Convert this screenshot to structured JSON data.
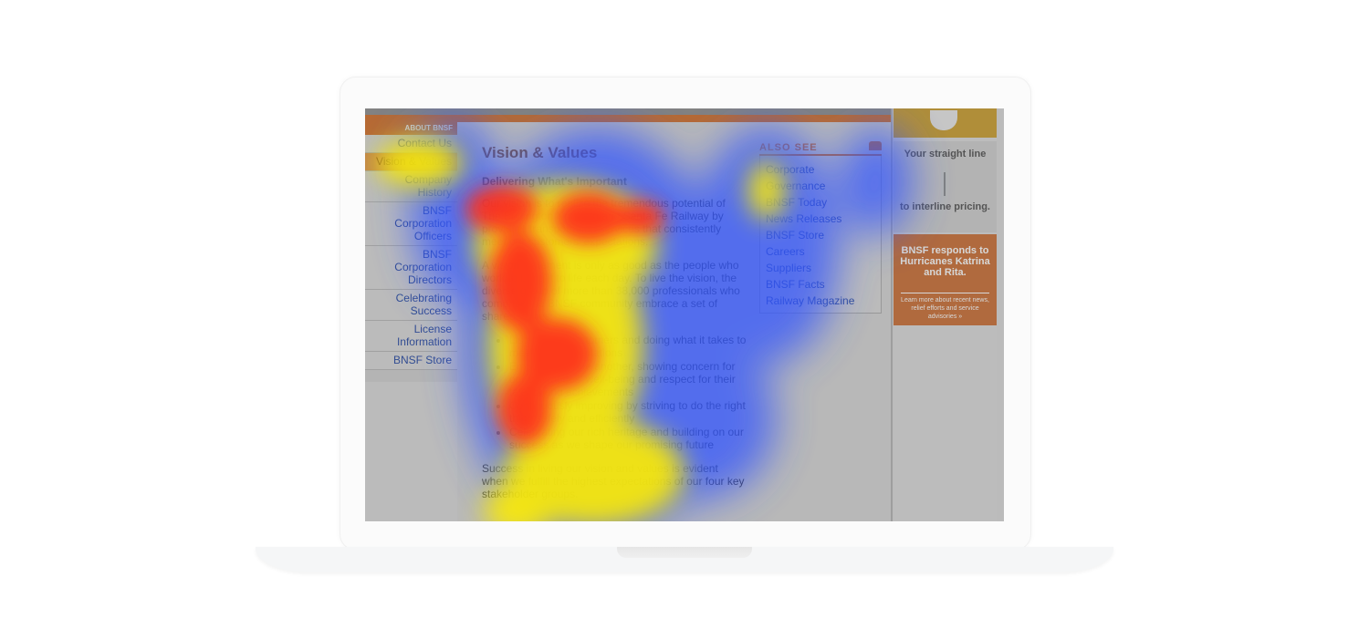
{
  "leftnav": {
    "header": "ABOUT BNSF",
    "items": [
      {
        "label": "Contact Us",
        "active": false
      },
      {
        "label": "Vision & Values",
        "active": true
      },
      {
        "label": "Company History",
        "active": false
      },
      {
        "label": "BNSF Corporation Officers",
        "active": false
      },
      {
        "label": "BNSF Corporation Directors",
        "active": false
      },
      {
        "label": "Celebrating Success",
        "active": false
      },
      {
        "label": "License Information",
        "active": false
      },
      {
        "label": "BNSF Store",
        "active": false
      }
    ]
  },
  "main": {
    "title": "Vision & Values",
    "subtitle": "Delivering What's Important",
    "para1": "Our vision is to realize the tremendous potential of The Burlington Northern and Santa Fe Railway by providing transportation services that consistently meet our customers' expectations.",
    "para2": "A vision statement is only as good as the people who work to bring it to life each day. To live the vision, the diverse group of more than 38,000 professionals who comprise the BNSF community embrace a set of shared values:",
    "values": [
      "Listening to customers and doing what it takes to meet their expectations",
      "Empowering one another, showing concern for our colleagues' well-being and respect for their talents and achievements",
      "Continuously improving by striving to do the right thing safely and efficiently",
      "Celebrating our rich heritage and building on our success as we shape our promising future"
    ],
    "para3": "Success in living our vision and values is evident when we fulfill the highest expectations of our four key stakeholder groups."
  },
  "also_see": {
    "header": "ALSO SEE",
    "items": [
      "Corporate",
      "Governance",
      "BNSF Today",
      "News Releases",
      "BNSF Store",
      "Careers",
      "Suppliers",
      "BNSF Facts",
      "Railway Magazine"
    ]
  },
  "ads": {
    "line_text1": "Your straight line",
    "line_text2": "to interline pricing.",
    "bnsf_text1": "BNSF responds to Hurricanes Katrina and Rita.",
    "bnsf_text2": "Learn more about recent news, relief efforts and service advisories »"
  },
  "colors": {
    "accent_orange": "#d2691e",
    "link_blue": "#1a3fa0",
    "heat_cold": "#3355ff",
    "heat_warm": "#ffee00",
    "heat_hot": "#ff2a1a"
  }
}
